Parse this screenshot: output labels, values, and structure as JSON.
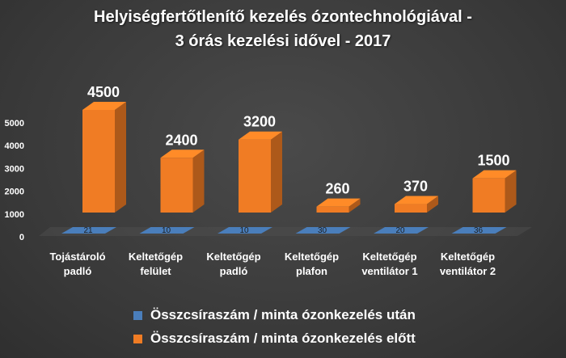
{
  "chart_data": {
    "type": "bar",
    "title": "Helyiségfertőtlenítő kezelés ózontechnológiával -",
    "subtitle": "3 órás kezelési idővel - 2017",
    "categories": [
      [
        "Tojástároló",
        "padló"
      ],
      [
        "Keltetőgép",
        "felület"
      ],
      [
        "Keltetőgép",
        "padló"
      ],
      [
        "Keltetőgép",
        "plafon"
      ],
      [
        "Keltetőgép",
        "ventilátor 1"
      ],
      [
        "Keltetőgép",
        "ventilátor 2"
      ]
    ],
    "series": [
      {
        "name": "Összcsíraszám / minta ózonkezelés után",
        "values": [
          21,
          10,
          10,
          30,
          20,
          36
        ],
        "color": "#4a7ebb"
      },
      {
        "name": "Összcsíraszám / minta ózonkezelés előtt",
        "values": [
          4500,
          2400,
          3200,
          260,
          370,
          1500
        ],
        "color": "#f07c24"
      }
    ],
    "yticks": [
      0,
      1000,
      2000,
      3000,
      4000,
      5000
    ],
    "ylim": [
      0,
      5000
    ],
    "grid": false,
    "legend_position": "bottom"
  }
}
